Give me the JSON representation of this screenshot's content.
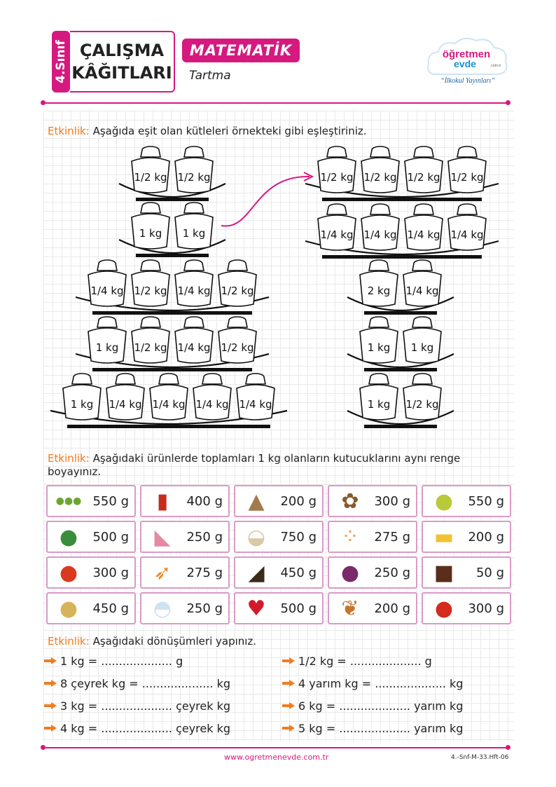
{
  "header": {
    "grade": "4.Sınıf",
    "title_line1": "ÇALIŞMA",
    "title_line2": "KÂĞITLARI",
    "subject": "MATEMATİK",
    "topic": "Tartma",
    "logo_top": "öğretmen",
    "logo_bottom": "evde",
    "logo_domain": ".com.tr",
    "logo_tagline": "“İlkokul Yayınları”"
  },
  "colors": {
    "brand": "#d6197f",
    "label": "#f07d20",
    "cell_border": "#d99bc7"
  },
  "section1": {
    "label": "Etkinlik:",
    "text": " Aşağıda eşit olan kütleleri örnekteki gibi eşleştiriniz."
  },
  "scales": [
    {
      "weights": [
        "1/2 kg",
        "1/2 kg"
      ]
    },
    {
      "weights": [
        "1 kg",
        "1 kg"
      ]
    },
    {
      "weights": [
        "1/4 kg",
        "1/2 kg",
        "1/4 kg",
        "1/2 kg"
      ]
    },
    {
      "weights": [
        "1 kg",
        "1/2 kg",
        "1/4 kg",
        "1/2 kg"
      ]
    },
    {
      "weights": [
        "1 kg",
        "1/4 kg",
        "1/4 kg",
        "1/4 kg",
        "1/4 kg"
      ]
    },
    {
      "weights": [
        "1/2 kg",
        "1/2 kg",
        "1/2 kg",
        "1/2 kg"
      ]
    },
    {
      "weights": [
        "1/4 kg",
        "1/4 kg",
        "1/4 kg",
        "1/4 kg"
      ]
    },
    {
      "weights": [
        "2 kg",
        "1/4 kg"
      ]
    },
    {
      "weights": [
        "1 kg",
        "1 kg"
      ]
    },
    {
      "weights": [
        "1 kg",
        "1/2 kg"
      ]
    }
  ],
  "section2": {
    "label": "Etkinlik:",
    "text": " Aşağıdaki ürünlerde toplamları 1 kg olanların kutucuklarını aynı renge boyayınız."
  },
  "products": [
    {
      "icon": "peas-icon",
      "value": "550 g"
    },
    {
      "icon": "jam-jar-icon",
      "value": "400 g"
    },
    {
      "icon": "sack-icon",
      "value": "200 g"
    },
    {
      "icon": "walnut-icon",
      "value": "300 g"
    },
    {
      "icon": "pear-icon",
      "value": "550 g"
    },
    {
      "icon": "watermelon-icon",
      "value": "500 g"
    },
    {
      "icon": "cake-icon",
      "value": "250 g"
    },
    {
      "icon": "flour-bowl-icon",
      "value": "750 g"
    },
    {
      "icon": "chickpeas-icon",
      "value": "275 g"
    },
    {
      "icon": "butter-icon",
      "value": "200 g"
    },
    {
      "icon": "tomato-icon",
      "value": "300 g"
    },
    {
      "icon": "carrot-icon",
      "value": "275 g"
    },
    {
      "icon": "cake-slice-icon",
      "value": "450 g"
    },
    {
      "icon": "onion-icon",
      "value": "250 g"
    },
    {
      "icon": "chocolate-icon",
      "value": "50 g"
    },
    {
      "icon": "potato-icon",
      "value": "450 g"
    },
    {
      "icon": "ice-cream-icon",
      "value": "250 g"
    },
    {
      "icon": "strawberry-icon",
      "value": "500 g"
    },
    {
      "icon": "chicken-leg-icon",
      "value": "200 g"
    },
    {
      "icon": "apple-icon",
      "value": "300 g"
    }
  ],
  "section3": {
    "label": "Etkinlik:",
    "text": " Aşağıdaki dönüşümleri yapınız."
  },
  "conversions": [
    "1 kg = .................... g",
    "1/2 kg = .................... g",
    "8 çeyrek kg = .................... kg",
    "4 yarım  kg = .................... kg",
    "3 kg = .................... çeyrek kg",
    "6 kg = .................... yarım kg",
    "4 kg = .................... çeyrek kg",
    "5 kg = .................... yarım kg"
  ],
  "footer": {
    "url": "www.ogretmenevde.com.tr",
    "code": "4.-Snf-M-33.Hft-06"
  }
}
